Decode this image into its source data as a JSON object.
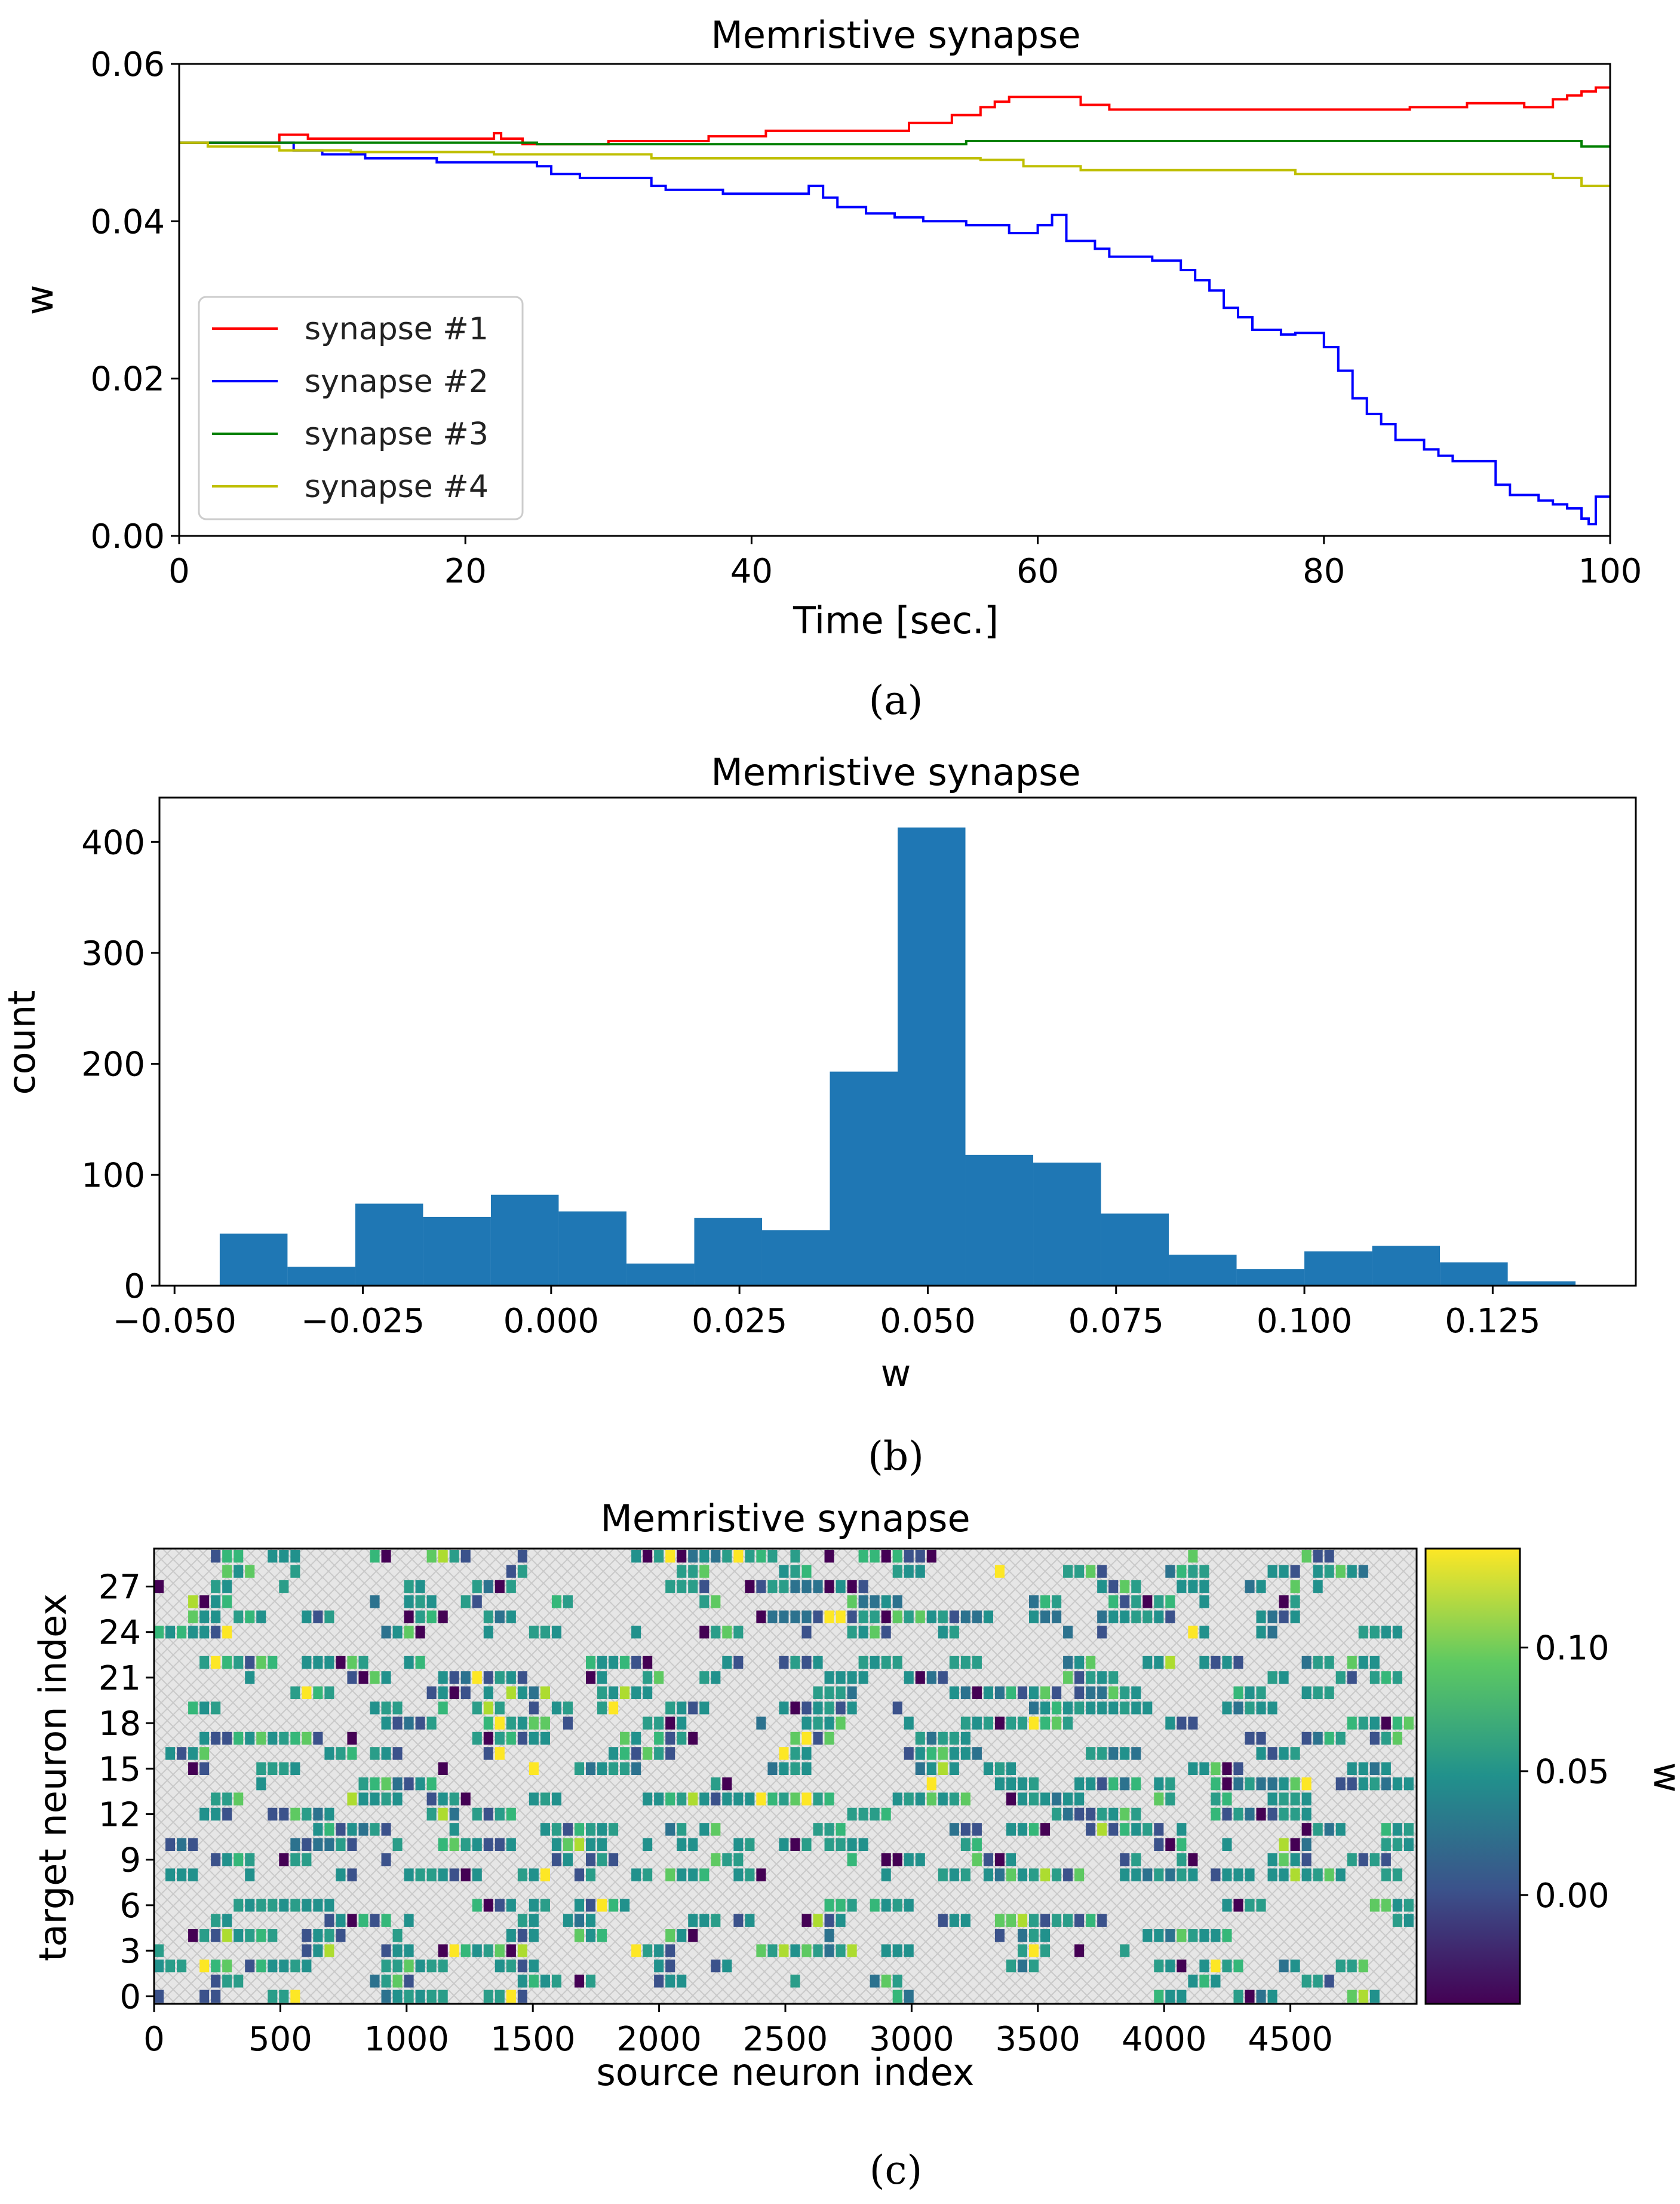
{
  "chart_data": [
    {
      "type": "line",
      "title": "Memristive synapse",
      "xlabel": "Time [sec.]",
      "ylabel": "w",
      "xlim": [
        0,
        100
      ],
      "ylim": [
        0,
        0.06
      ],
      "xticks": [
        "0",
        "20",
        "40",
        "60",
        "80",
        "100"
      ],
      "yticks": [
        "0.00",
        "0.02",
        "0.04",
        "0.06"
      ],
      "caption": "(a)",
      "legend_position": "lower-left",
      "series": [
        {
          "name": "synapse #1",
          "color": "#ff0000",
          "x": [
            0,
            7,
            7,
            9,
            9,
            13,
            13,
            22,
            22,
            22.5,
            22.5,
            24,
            24,
            30,
            30,
            37,
            37,
            41,
            41,
            51,
            51,
            54,
            54,
            56,
            56,
            57,
            57,
            58,
            58,
            63,
            63,
            65,
            65,
            76,
            76,
            86,
            86,
            90,
            90,
            94,
            94,
            96,
            96,
            97,
            97,
            98,
            98,
            99,
            99,
            100
          ],
          "y": [
            0.05,
            0.05,
            0.051,
            0.051,
            0.0505,
            0.0505,
            0.0505,
            0.0505,
            0.0512,
            0.0512,
            0.0505,
            0.0505,
            0.0498,
            0.0498,
            0.0502,
            0.0502,
            0.0508,
            0.0508,
            0.0515,
            0.0515,
            0.0525,
            0.0525,
            0.0535,
            0.0535,
            0.0545,
            0.0545,
            0.0552,
            0.0552,
            0.0558,
            0.0558,
            0.0548,
            0.0548,
            0.0542,
            0.0542,
            0.0542,
            0.0542,
            0.0545,
            0.0545,
            0.055,
            0.055,
            0.0545,
            0.0545,
            0.0555,
            0.0555,
            0.056,
            0.056,
            0.0565,
            0.0565,
            0.057,
            0.057
          ]
        },
        {
          "name": "synapse #2",
          "color": "#0000ff",
          "x": [
            0,
            8,
            8,
            10,
            10,
            13,
            13,
            18,
            18,
            25,
            25,
            26,
            26,
            28,
            28,
            33,
            33,
            34,
            34,
            38,
            38,
            44,
            44,
            45,
            45,
            46,
            46,
            48,
            48,
            50,
            50,
            52,
            52,
            55,
            55,
            58,
            58,
            60,
            60,
            61,
            61,
            62,
            62,
            64,
            64,
            65,
            65,
            68,
            68,
            70,
            70,
            71,
            71,
            72,
            72,
            73,
            73,
            74,
            74,
            75,
            75,
            77,
            77,
            78,
            78,
            80,
            80,
            81,
            81,
            82,
            82,
            83,
            83,
            84,
            84,
            85,
            85,
            87,
            87,
            88,
            88,
            89,
            89,
            92,
            92,
            93,
            93,
            95,
            95,
            96,
            96,
            97,
            97,
            98,
            98,
            98.5,
            98.5,
            99,
            99,
            100
          ],
          "y": [
            0.05,
            0.05,
            0.049,
            0.049,
            0.0485,
            0.0485,
            0.048,
            0.048,
            0.0475,
            0.0475,
            0.047,
            0.047,
            0.046,
            0.046,
            0.0455,
            0.0455,
            0.0445,
            0.0445,
            0.044,
            0.044,
            0.0435,
            0.0435,
            0.0445,
            0.0445,
            0.043,
            0.043,
            0.0418,
            0.0418,
            0.041,
            0.041,
            0.0405,
            0.0405,
            0.04,
            0.04,
            0.0395,
            0.0395,
            0.0385,
            0.0385,
            0.0395,
            0.0395,
            0.0408,
            0.0408,
            0.0375,
            0.0375,
            0.0365,
            0.0365,
            0.0355,
            0.0355,
            0.035,
            0.035,
            0.0338,
            0.0338,
            0.0325,
            0.0325,
            0.0312,
            0.0312,
            0.029,
            0.029,
            0.0278,
            0.0278,
            0.0262,
            0.0262,
            0.0256,
            0.0256,
            0.0258,
            0.0258,
            0.024,
            0.024,
            0.021,
            0.021,
            0.0175,
            0.0175,
            0.0155,
            0.0155,
            0.0142,
            0.0142,
            0.0122,
            0.0122,
            0.011,
            0.011,
            0.0102,
            0.0102,
            0.0095,
            0.0095,
            0.0065,
            0.0065,
            0.0052,
            0.0052,
            0.0045,
            0.0045,
            0.004,
            0.004,
            0.0035,
            0.0035,
            0.0022,
            0.0022,
            0.0015,
            0.0015,
            0.005,
            0.005
          ]
        },
        {
          "name": "synapse #3",
          "color": "#008000",
          "x": [
            0,
            25,
            25,
            55,
            55,
            98,
            98,
            100
          ],
          "y": [
            0.05,
            0.05,
            0.0498,
            0.0498,
            0.0502,
            0.0502,
            0.0495,
            0.0495
          ]
        },
        {
          "name": "synapse #4",
          "color": "#bfbf00",
          "x": [
            0,
            2,
            2,
            7,
            7,
            12,
            12,
            22,
            22,
            33,
            33,
            56,
            56,
            59,
            59,
            63,
            63,
            71,
            71,
            78,
            78,
            96,
            96,
            98,
            98,
            100
          ],
          "y": [
            0.05,
            0.05,
            0.0495,
            0.0495,
            0.049,
            0.049,
            0.0488,
            0.0488,
            0.0485,
            0.0485,
            0.048,
            0.048,
            0.0478,
            0.0478,
            0.047,
            0.047,
            0.0465,
            0.0465,
            0.0465,
            0.0465,
            0.046,
            0.046,
            0.0455,
            0.0455,
            0.0445,
            0.0445
          ]
        }
      ]
    },
    {
      "type": "bar",
      "title": "Memristive synapse",
      "xlabel": "w",
      "ylabel": "count",
      "xlim": [
        -0.052,
        0.144
      ],
      "ylim": [
        0,
        440
      ],
      "xticks": [
        "−0.050",
        "−0.025",
        "0.000",
        "0.025",
        "0.050",
        "0.075",
        "0.100",
        "0.125"
      ],
      "yticks": [
        "0",
        "100",
        "200",
        "300",
        "400"
      ],
      "caption": "(b)",
      "bin_edges": [
        -0.044,
        -0.035,
        -0.026,
        -0.017,
        -0.008,
        0.001,
        0.01,
        0.019,
        0.028,
        0.037,
        0.046,
        0.055,
        0.064,
        0.073,
        0.082,
        0.091,
        0.1,
        0.109,
        0.118,
        0.127,
        0.136
      ],
      "values": [
        47,
        17,
        74,
        62,
        82,
        67,
        20,
        61,
        50,
        193,
        413,
        118,
        111,
        65,
        28,
        15,
        31,
        36,
        21,
        4
      ],
      "color": "#1f77b4"
    },
    {
      "type": "heatmap",
      "title": "Memristive synapse",
      "xlabel": "source neuron index",
      "ylabel": "target neuron index",
      "xlim": [
        0,
        5000
      ],
      "ylim": [
        0,
        30
      ],
      "xticks": [
        "0",
        "500",
        "1000",
        "1500",
        "2000",
        "2500",
        "3000",
        "3500",
        "4000",
        "4500"
      ],
      "yticks": [
        "0",
        "3",
        "6",
        "9",
        "12",
        "15",
        "18",
        "21",
        "24",
        "27"
      ],
      "colorbar_label": "w",
      "colorbar_ticks": [
        "0.00",
        "0.05",
        "0.10"
      ],
      "colorbar_range": [
        -0.044,
        0.14
      ],
      "colormap": "viridis",
      "background": "gray cross-hatched (no connection)",
      "caption": "(c)"
    }
  ]
}
